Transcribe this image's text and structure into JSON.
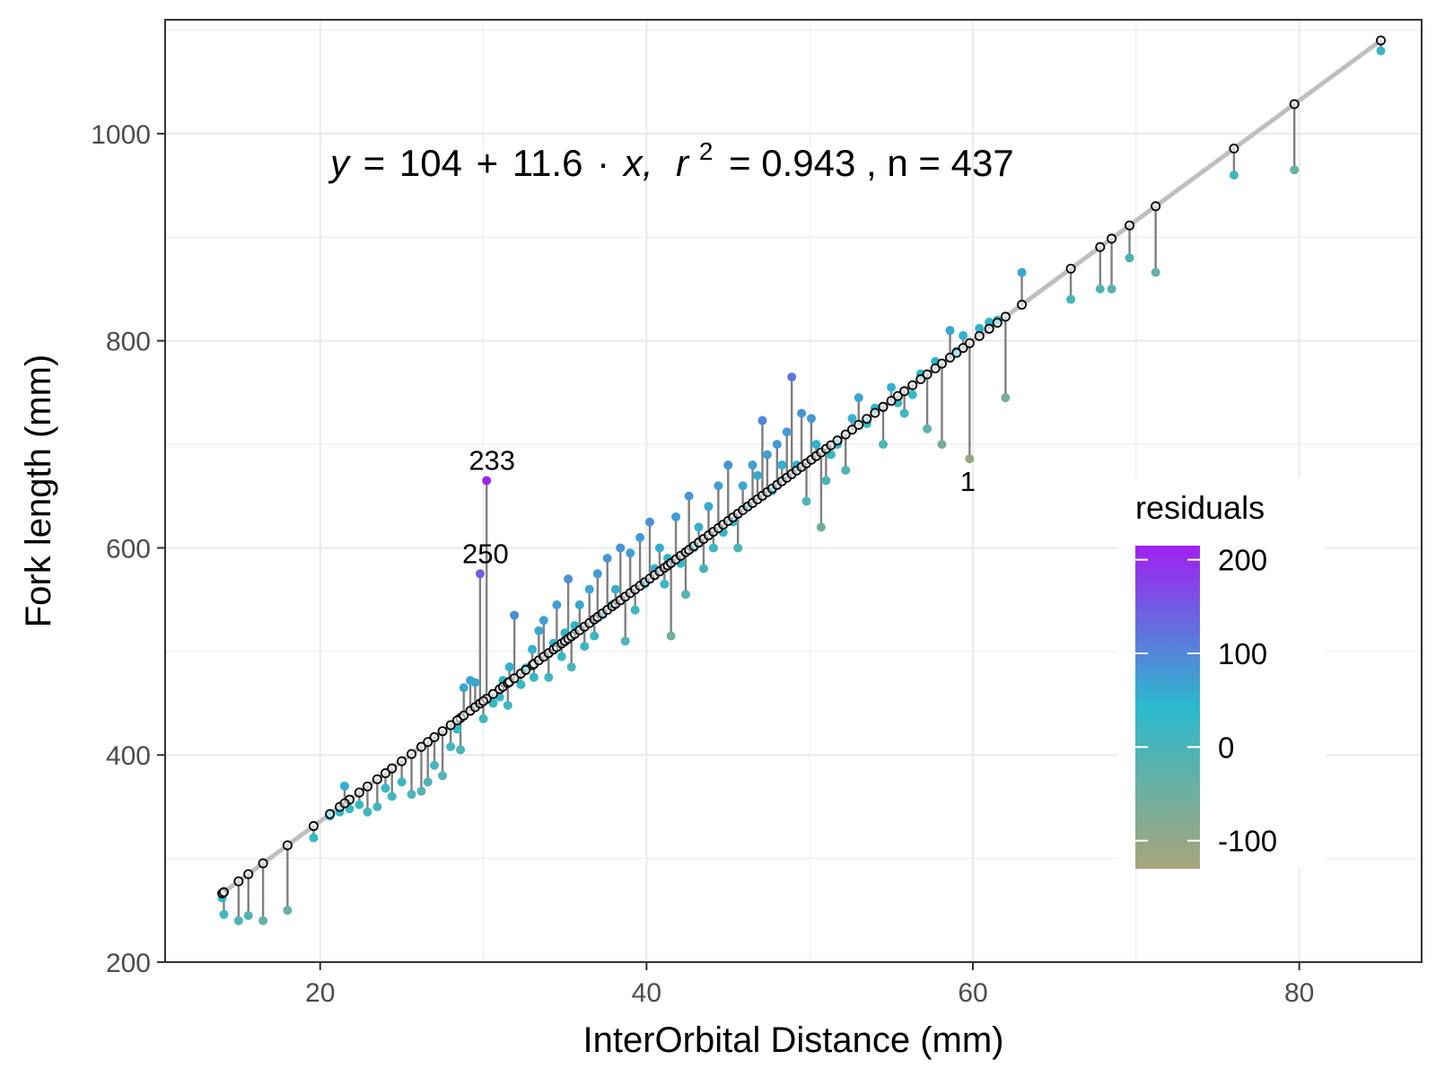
{
  "chart_data": {
    "type": "scatter",
    "xlabel": "InterOrbital Distance (mm)",
    "ylabel": "Fork length (mm)",
    "xlim": [
      10.5,
      87.5
    ],
    "ylim": [
      200,
      1110
    ],
    "x_ticks": [
      20,
      40,
      60,
      80
    ],
    "y_ticks": [
      200,
      400,
      600,
      800,
      1000
    ],
    "grid": true,
    "annotation": {
      "y_sym": "y",
      "equals": "=",
      "intercept": "104",
      "plus": "+",
      "slope": "11.6",
      "dot": "·",
      "x_sym": "x,",
      "r_sym": "r",
      "r_exp": "2",
      "rest": "= 0.943 , n = 437"
    },
    "fit": {
      "intercept": 104,
      "slope": 11.6,
      "r2": 0.943,
      "n": 437
    },
    "legend": {
      "title": "residuals",
      "placement": "right-inside",
      "range": [
        -130,
        215
      ],
      "ticks": [
        {
          "value": 200,
          "label": "200"
        },
        {
          "value": 100,
          "label": "100"
        },
        {
          "value": 0,
          "label": "0"
        },
        {
          "value": -100,
          "label": "-100"
        }
      ],
      "colors": {
        "low": "#a8a57a",
        "mid": "#2bbacd",
        "high": "#a020f0"
      }
    },
    "point_labels": [
      {
        "text": "233",
        "x": 30.2,
        "y": 665
      },
      {
        "text": "250",
        "x": 29.8,
        "y": 575
      },
      {
        "text": "1",
        "x": 59.8,
        "y": 686
      }
    ],
    "colors": {
      "line": "#bfbfbf",
      "segment": "#7f7f7f",
      "fitted_point": "#000000"
    },
    "points": [
      [
        14.0,
        262
      ],
      [
        14.1,
        246
      ],
      [
        15.0,
        240
      ],
      [
        15.6,
        245
      ],
      [
        16.5,
        240
      ],
      [
        18.0,
        250
      ],
      [
        19.6,
        320
      ],
      [
        20.6,
        341
      ],
      [
        21.2,
        345
      ],
      [
        21.8,
        348
      ],
      [
        21.5,
        370
      ],
      [
        22.4,
        352
      ],
      [
        22.9,
        345
      ],
      [
        23.5,
        350
      ],
      [
        24.0,
        368
      ],
      [
        24.4,
        360
      ],
      [
        25.0,
        374
      ],
      [
        25.6,
        362
      ],
      [
        26.2,
        365
      ],
      [
        26.6,
        374
      ],
      [
        27.0,
        390
      ],
      [
        27.5,
        380
      ],
      [
        28.0,
        408
      ],
      [
        28.6,
        405
      ],
      [
        28.4,
        425
      ],
      [
        28.8,
        465
      ],
      [
        29.2,
        472
      ],
      [
        29.5,
        470
      ],
      [
        29.8,
        575
      ],
      [
        30.2,
        665
      ],
      [
        30.0,
        435
      ],
      [
        30.6,
        450
      ],
      [
        31.0,
        456
      ],
      [
        31.2,
        472
      ],
      [
        31.5,
        448
      ],
      [
        31.6,
        485
      ],
      [
        31.9,
        535
      ],
      [
        32.3,
        468
      ],
      [
        32.6,
        484
      ],
      [
        33.0,
        502
      ],
      [
        33.1,
        475
      ],
      [
        33.4,
        520
      ],
      [
        33.7,
        530
      ],
      [
        34.0,
        475
      ],
      [
        34.3,
        508
      ],
      [
        34.5,
        545
      ],
      [
        34.8,
        495
      ],
      [
        35.0,
        518
      ],
      [
        35.2,
        570
      ],
      [
        35.4,
        485
      ],
      [
        35.6,
        525
      ],
      [
        35.9,
        545
      ],
      [
        36.2,
        505
      ],
      [
        36.5,
        560
      ],
      [
        36.8,
        515
      ],
      [
        37.0,
        575
      ],
      [
        37.3,
        535
      ],
      [
        37.6,
        590
      ],
      [
        37.9,
        545
      ],
      [
        38.1,
        560
      ],
      [
        38.4,
        600
      ],
      [
        38.7,
        510
      ],
      [
        39.0,
        595
      ],
      [
        39.3,
        540
      ],
      [
        39.6,
        610
      ],
      [
        39.9,
        565
      ],
      [
        40.2,
        625
      ],
      [
        40.5,
        580
      ],
      [
        40.8,
        600
      ],
      [
        41.1,
        565
      ],
      [
        41.3,
        590
      ],
      [
        41.5,
        515
      ],
      [
        41.8,
        630
      ],
      [
        42.1,
        585
      ],
      [
        42.4,
        555
      ],
      [
        42.6,
        650
      ],
      [
        42.9,
        600
      ],
      [
        43.2,
        620
      ],
      [
        43.5,
        580
      ],
      [
        43.8,
        640
      ],
      [
        44.1,
        600
      ],
      [
        44.4,
        660
      ],
      [
        44.7,
        615
      ],
      [
        45.0,
        680
      ],
      [
        45.3,
        625
      ],
      [
        45.6,
        600
      ],
      [
        45.9,
        660
      ],
      [
        46.2,
        640
      ],
      [
        46.5,
        680
      ],
      [
        46.8,
        670
      ],
      [
        47.1,
        723
      ],
      [
        47.4,
        690
      ],
      [
        47.7,
        655
      ],
      [
        48.0,
        700
      ],
      [
        48.3,
        680
      ],
      [
        48.6,
        712
      ],
      [
        48.9,
        765
      ],
      [
        49.2,
        680
      ],
      [
        49.5,
        730
      ],
      [
        49.8,
        645
      ],
      [
        50.1,
        725
      ],
      [
        50.4,
        700
      ],
      [
        50.7,
        620
      ],
      [
        51.0,
        665
      ],
      [
        51.3,
        690
      ],
      [
        51.7,
        700
      ],
      [
        52.2,
        675
      ],
      [
        52.6,
        725
      ],
      [
        53.0,
        745
      ],
      [
        53.5,
        720
      ],
      [
        54.0,
        735
      ],
      [
        54.5,
        700
      ],
      [
        55.0,
        755
      ],
      [
        55.4,
        740
      ],
      [
        55.8,
        730
      ],
      [
        56.3,
        748
      ],
      [
        56.8,
        768
      ],
      [
        57.2,
        715
      ],
      [
        57.7,
        780
      ],
      [
        58.1,
        700
      ],
      [
        58.6,
        810
      ],
      [
        59.0,
        790
      ],
      [
        59.4,
        805
      ],
      [
        59.8,
        686
      ],
      [
        60.4,
        812
      ],
      [
        61.0,
        818
      ],
      [
        61.5,
        820
      ],
      [
        62.0,
        745
      ],
      [
        63.0,
        866
      ],
      [
        66.0,
        840
      ],
      [
        67.8,
        850
      ],
      [
        68.5,
        850
      ],
      [
        69.6,
        880
      ],
      [
        71.2,
        866
      ],
      [
        76.0,
        960
      ],
      [
        79.7,
        965
      ],
      [
        85.0,
        1080
      ]
    ]
  }
}
